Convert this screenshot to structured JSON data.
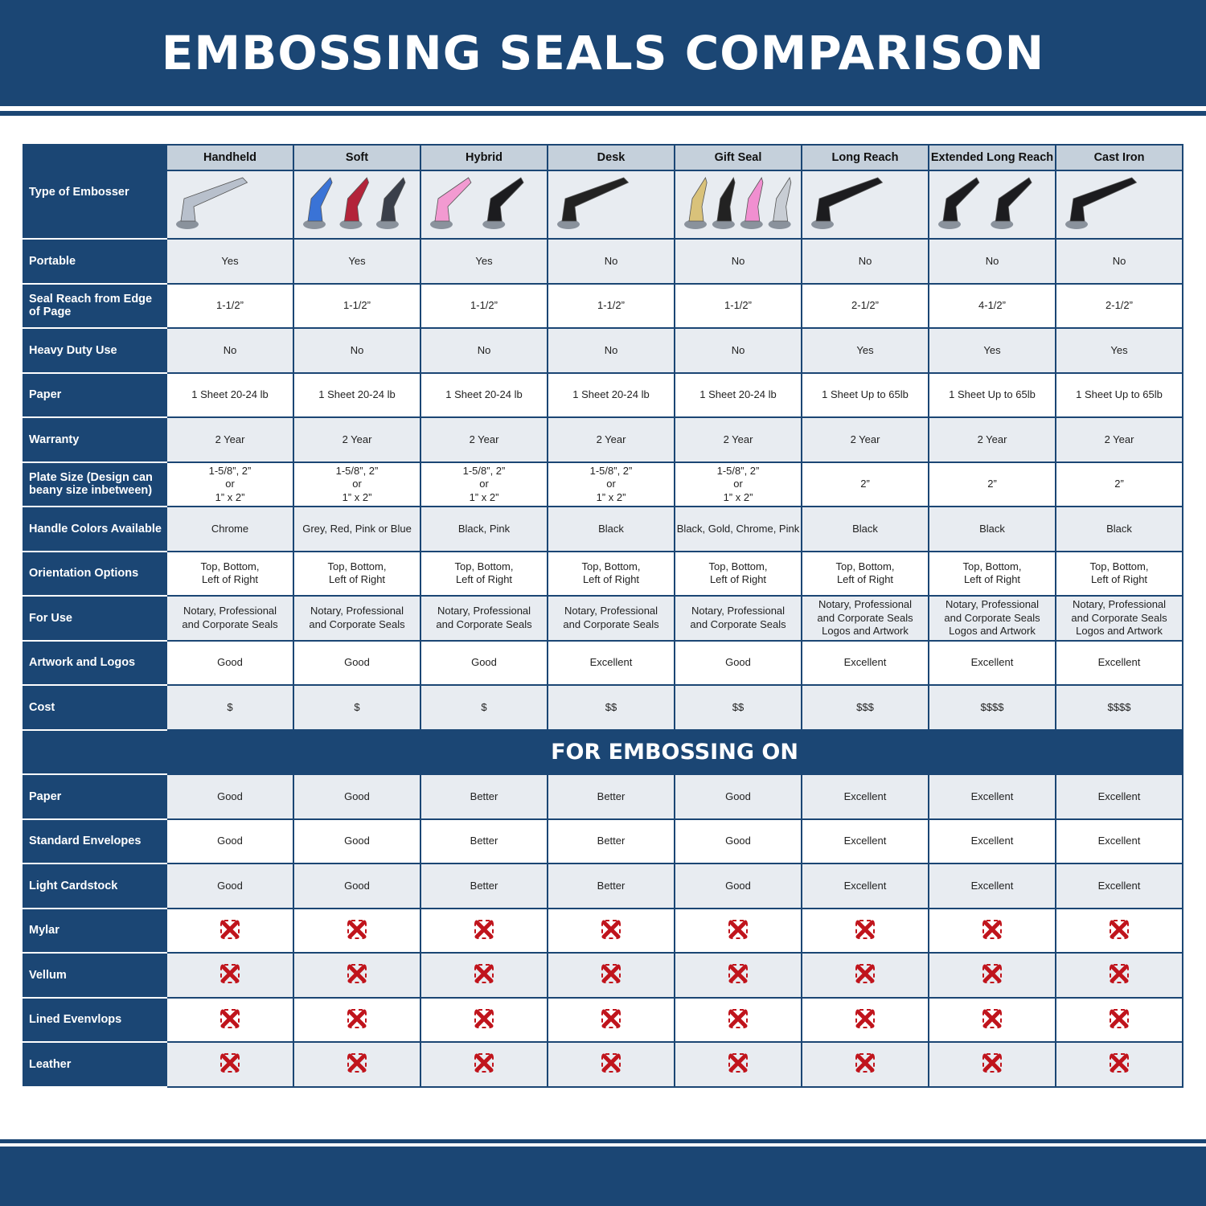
{
  "title": "EMBOSSING SEALS COMPARISON",
  "type_label": "Type of Embosser",
  "columns": [
    "Handheld",
    "Soft",
    "Hybrid",
    "Desk",
    "Gift Seal",
    "Long Reach",
    "Extended Long Reach",
    "Cast Iron"
  ],
  "column_images": [
    "chrome handheld embosser",
    "blue, red and grey soft embossers",
    "pink and black hybrid embossers",
    "black desk embosser",
    "gold, black, pink and chrome gift seals",
    "black long reach embosser",
    "two black extended long reach embossers",
    "black cast iron embosser"
  ],
  "rows": [
    {
      "label": "Portable",
      "values": [
        "Yes",
        "Yes",
        "Yes",
        "No",
        "No",
        "No",
        "No",
        "No"
      ]
    },
    {
      "label": "Seal Reach from Edge of Page",
      "values": [
        "1-1/2”",
        "1-1/2”",
        "1-1/2”",
        "1-1/2”",
        "1-1/2”",
        "2-1/2”",
        "4-1/2”",
        "2-1/2”"
      ]
    },
    {
      "label": "Heavy Duty Use",
      "values": [
        "No",
        "No",
        "No",
        "No",
        "No",
        "Yes",
        "Yes",
        "Yes"
      ]
    },
    {
      "label": "Paper",
      "values": [
        "1 Sheet 20-24 lb",
        "1 Sheet 20-24 lb",
        "1 Sheet 20-24 lb",
        "1 Sheet 20-24 lb",
        "1 Sheet 20-24 lb",
        "1 Sheet Up to 65lb",
        "1 Sheet Up to 65lb",
        "1 Sheet Up to 65lb"
      ]
    },
    {
      "label": "Warranty",
      "values": [
        "2 Year",
        "2 Year",
        "2 Year",
        "2 Year",
        "2 Year",
        "2 Year",
        "2 Year",
        "2 Year"
      ]
    },
    {
      "label": "Plate Size (Design can beany size inbetween)",
      "values": [
        "1-5/8”, 2”\nor\n1” x 2”",
        "1-5/8”, 2”\nor\n1” x 2”",
        "1-5/8”, 2”\nor\n1” x 2”",
        "1-5/8”, 2”\nor\n1” x 2”",
        "1-5/8”, 2”\nor\n1” x 2”",
        "2”",
        "2”",
        "2”"
      ]
    },
    {
      "label": "Handle Colors Available",
      "values": [
        "Chrome",
        "Grey, Red, Pink or Blue",
        "Black, Pink",
        "Black",
        "Black, Gold, Chrome, Pink",
        "Black",
        "Black",
        "Black"
      ]
    },
    {
      "label": "Orientation Options",
      "values": [
        "Top, Bottom,\nLeft of Right",
        "Top, Bottom,\nLeft of Right",
        "Top, Bottom,\nLeft of Right",
        "Top, Bottom,\nLeft of Right",
        "Top, Bottom,\nLeft of Right",
        "Top, Bottom,\nLeft of Right",
        "Top, Bottom,\nLeft of Right",
        "Top, Bottom,\nLeft of Right"
      ]
    },
    {
      "label": "For Use",
      "values": [
        "Notary, Professional\nand Corporate Seals",
        "Notary, Professional\nand Corporate Seals",
        "Notary, Professional\nand Corporate Seals",
        "Notary, Professional\nand Corporate Seals",
        "Notary, Professional\nand Corporate Seals",
        "Notary, Professional\nand Corporate Seals\nLogos and Artwork",
        "Notary, Professional\nand Corporate Seals\nLogos and Artwork",
        "Notary, Professional\nand Corporate Seals\nLogos and Artwork"
      ]
    },
    {
      "label": "Artwork and Logos",
      "values": [
        "Good",
        "Good",
        "Good",
        "Excellent",
        "Good",
        "Excellent",
        "Excellent",
        "Excellent"
      ]
    },
    {
      "label": "Cost",
      "values": [
        "$",
        "$",
        "$",
        "$$",
        "$$",
        "$$$",
        "$$$$",
        "$$$$"
      ]
    }
  ],
  "section_title": "FOR EMBOSSING ON",
  "embossing_rows": [
    {
      "label": "Paper",
      "values": [
        "Good",
        "Good",
        "Better",
        "Better",
        "Good",
        "Excellent",
        "Excellent",
        "Excellent"
      ]
    },
    {
      "label": "Standard Envelopes",
      "values": [
        "Good",
        "Good",
        "Better",
        "Better",
        "Good",
        "Excellent",
        "Excellent",
        "Excellent"
      ]
    },
    {
      "label": "Light Cardstock",
      "values": [
        "Good",
        "Good",
        "Better",
        "Better",
        "Good",
        "Excellent",
        "Excellent",
        "Excellent"
      ]
    },
    {
      "label": "Mylar",
      "values": [
        "x-icon",
        "x-icon",
        "x-icon",
        "x-icon",
        "x-icon",
        "x-icon",
        "x-icon",
        "x-icon"
      ]
    },
    {
      "label": "Vellum",
      "values": [
        "x-icon",
        "x-icon",
        "x-icon",
        "x-icon",
        "x-icon",
        "x-icon",
        "x-icon",
        "x-icon"
      ]
    },
    {
      "label": "Lined Evenvlops",
      "values": [
        "x-icon",
        "x-icon",
        "x-icon",
        "x-icon",
        "x-icon",
        "x-icon",
        "x-icon",
        "x-icon"
      ]
    },
    {
      "label": "Leather",
      "values": [
        "x-icon",
        "x-icon",
        "x-icon",
        "x-icon",
        "x-icon",
        "x-icon",
        "x-icon",
        "x-icon"
      ]
    }
  ],
  "colors": {
    "navy": "#1b4674",
    "header_grey": "#c5d0db",
    "row_grey": "#e8ecf1",
    "x_red": "#c0141c"
  }
}
